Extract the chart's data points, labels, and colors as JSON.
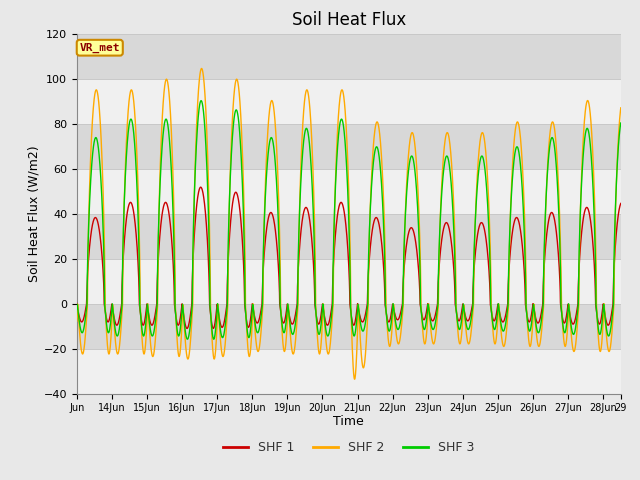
{
  "title": "Soil Heat Flux",
  "xlabel": "Time",
  "ylabel": "Soil Heat Flux (W/m2)",
  "ylim": [
    -40,
    120
  ],
  "yticks": [
    -40,
    -20,
    0,
    20,
    40,
    60,
    80,
    100,
    120
  ],
  "xlim": [
    0,
    15.5
  ],
  "xtick_positions": [
    0,
    1,
    2,
    3,
    4,
    5,
    6,
    7,
    8,
    9,
    10,
    11,
    12,
    13,
    14,
    15,
    15.5
  ],
  "xtick_labels": [
    "Jun",
    "14Jun",
    "15Jun",
    "16Jun",
    "17Jun",
    "18Jun",
    "19Jun",
    "20Jun",
    "21Jun",
    "22Jun",
    "23Jun",
    "24Jun",
    "25Jun",
    "26Jun",
    "27Jun",
    "28Jun",
    "29"
  ],
  "shf1_color": "#cc0000",
  "shf2_color": "#ffaa00",
  "shf3_color": "#00cc00",
  "legend_label1": "SHF 1",
  "legend_label2": "SHF 2",
  "legend_label3": "SHF 3",
  "vr_met_label": "VR_met",
  "fig_bg_color": "#e8e8e8",
  "plot_bg_color_light": "#f0f0f0",
  "plot_bg_color_dark": "#d8d8d8",
  "grid_color": "#c8c8c8",
  "title_fontsize": 12,
  "axis_fontsize": 9,
  "tick_fontsize": 8,
  "shf1_day_amp": 45,
  "shf1_night_amp": 12,
  "shf2_day_amp": 95,
  "shf2_night_amp": 28,
  "shf3_day_amp": 82,
  "shf3_night_amp": 18,
  "shf1_amps": [
    0.85,
    1.0,
    1.0,
    1.15,
    1.1,
    0.9,
    0.95,
    1.0,
    0.85,
    0.75,
    0.8,
    0.8,
    0.85,
    0.9,
    0.95,
    1.0
  ],
  "shf2_amps": [
    1.0,
    1.0,
    1.05,
    1.1,
    1.05,
    0.95,
    1.0,
    1.0,
    0.85,
    0.8,
    0.8,
    0.8,
    0.85,
    0.85,
    0.95,
    0.95
  ],
  "shf3_amps": [
    0.9,
    1.0,
    1.0,
    1.1,
    1.05,
    0.9,
    0.95,
    1.0,
    0.85,
    0.8,
    0.8,
    0.8,
    0.85,
    0.9,
    0.95,
    1.0
  ]
}
